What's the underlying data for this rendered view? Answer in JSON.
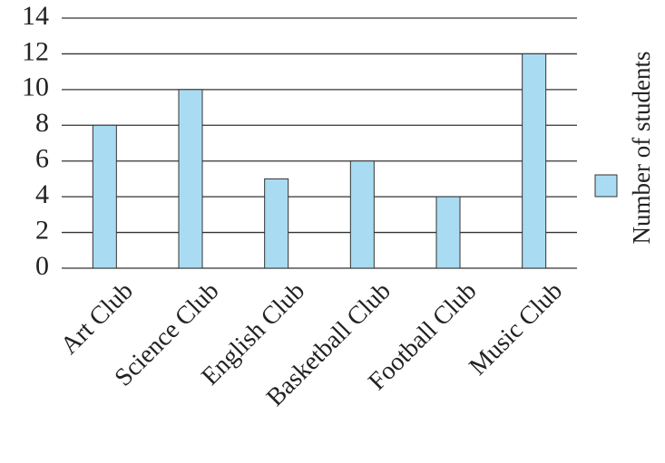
{
  "chart_data": {
    "type": "bar",
    "categories": [
      "Art Club",
      "Science Club",
      "English Club",
      "Basketball Club",
      "Football Club",
      "Music Club"
    ],
    "series": [
      {
        "name": "Number of students",
        "color": "#a9dcf2",
        "values": [
          8,
          10,
          5,
          6,
          4,
          12
        ]
      }
    ],
    "ylim": [
      0,
      14
    ],
    "yticks": [
      0,
      2,
      4,
      6,
      8,
      10,
      12,
      14
    ],
    "grid": true,
    "legend": "right"
  }
}
